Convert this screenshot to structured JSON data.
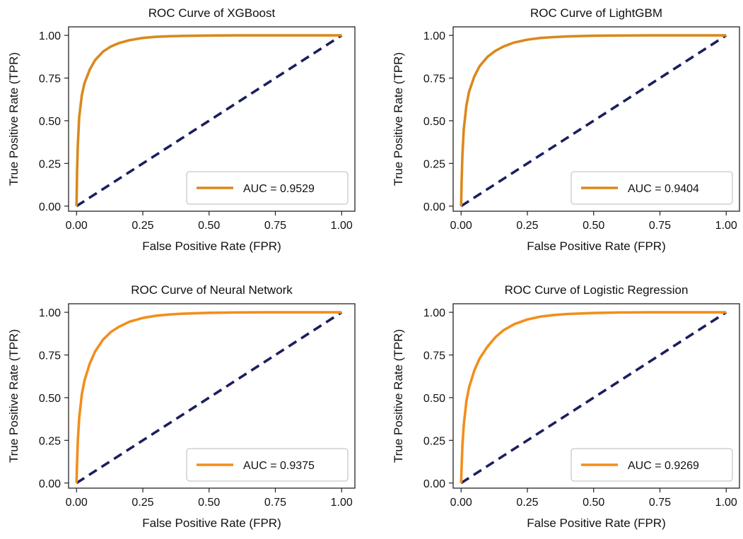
{
  "colors": {
    "roc_curve": "#F28E1B",
    "roc_curve_dark": "#D4891F",
    "diagonal": "#1B1F5E",
    "frame": "#222222"
  },
  "chart_data": [
    {
      "type": "line",
      "title": "ROC Curve of XGBoost",
      "xlabel": "False Positive Rate (FPR)",
      "ylabel": "True Positive Rate (TPR)",
      "xlim": [
        -0.03,
        1.05
      ],
      "ylim": [
        -0.03,
        1.05
      ],
      "xticks": [
        0.0,
        0.25,
        0.5,
        0.75,
        1.0
      ],
      "xtick_labels": [
        "0.00",
        "0.25",
        "0.50",
        "0.75",
        "1.00"
      ],
      "yticks": [
        0.0,
        0.25,
        0.5,
        0.75,
        1.0
      ],
      "ytick_labels": [
        "0.00",
        "0.25",
        "0.50",
        "0.75",
        "1.00"
      ],
      "grid": false,
      "legend_position": "lower-right",
      "series": [
        {
          "name": "AUC = 0.9529",
          "color": "#D9891C",
          "x": [
            0,
            0.002,
            0.005,
            0.01,
            0.02,
            0.03,
            0.05,
            0.07,
            0.1,
            0.13,
            0.16,
            0.2,
            0.25,
            0.3,
            0.35,
            0.4,
            0.5,
            0.6,
            0.7,
            0.8,
            0.9,
            1.0
          ],
          "y": [
            0,
            0.2,
            0.36,
            0.52,
            0.65,
            0.72,
            0.8,
            0.855,
            0.905,
            0.935,
            0.955,
            0.972,
            0.985,
            0.992,
            0.995,
            0.997,
            0.999,
            1.0,
            1.0,
            1.0,
            1.0,
            1.0
          ]
        },
        {
          "name": "",
          "style": "dashed",
          "color": "#1B1F5E",
          "x": [
            0,
            1
          ],
          "y": [
            0,
            1
          ]
        }
      ]
    },
    {
      "type": "line",
      "title": "ROC Curve of LightGBM",
      "xlabel": "False Positive Rate (FPR)",
      "ylabel": "True Positive Rate (TPR)",
      "xlim": [
        -0.03,
        1.05
      ],
      "ylim": [
        -0.03,
        1.05
      ],
      "xticks": [
        0.0,
        0.25,
        0.5,
        0.75,
        1.0
      ],
      "xtick_labels": [
        "0.00",
        "0.25",
        "0.50",
        "0.75",
        "1.00"
      ],
      "yticks": [
        0.0,
        0.25,
        0.5,
        0.75,
        1.0
      ],
      "ytick_labels": [
        "0.00",
        "0.25",
        "0.50",
        "0.75",
        "1.00"
      ],
      "grid": false,
      "legend_position": "lower-right",
      "series": [
        {
          "name": "AUC = 0.9404",
          "color": "#D9891C",
          "x": [
            0,
            0.002,
            0.005,
            0.01,
            0.02,
            0.03,
            0.05,
            0.07,
            0.1,
            0.13,
            0.16,
            0.2,
            0.25,
            0.3,
            0.35,
            0.4,
            0.5,
            0.6,
            0.7,
            0.8,
            0.9,
            1.0
          ],
          "y": [
            0,
            0.15,
            0.3,
            0.45,
            0.59,
            0.67,
            0.76,
            0.82,
            0.875,
            0.91,
            0.935,
            0.958,
            0.975,
            0.985,
            0.99,
            0.994,
            0.998,
            0.999,
            1.0,
            1.0,
            1.0,
            1.0
          ]
        },
        {
          "name": "",
          "style": "dashed",
          "color": "#1B1F5E",
          "x": [
            0,
            1
          ],
          "y": [
            0,
            1
          ]
        }
      ]
    },
    {
      "type": "line",
      "title": "ROC Curve of Neural Network",
      "xlabel": "False Positive Rate (FPR)",
      "ylabel": "True Positive Rate (TPR)",
      "xlim": [
        -0.03,
        1.05
      ],
      "ylim": [
        -0.03,
        1.05
      ],
      "xticks": [
        0.0,
        0.25,
        0.5,
        0.75,
        1.0
      ],
      "xtick_labels": [
        "0.00",
        "0.25",
        "0.50",
        "0.75",
        "1.00"
      ],
      "yticks": [
        0.0,
        0.25,
        0.5,
        0.75,
        1.0
      ],
      "ytick_labels": [
        "0.00",
        "0.25",
        "0.50",
        "0.75",
        "1.00"
      ],
      "grid": false,
      "legend_position": "lower-right",
      "series": [
        {
          "name": "AUC = 0.9375",
          "color": "#F28E1B",
          "x": [
            0,
            0.002,
            0.005,
            0.01,
            0.02,
            0.03,
            0.05,
            0.07,
            0.1,
            0.13,
            0.16,
            0.2,
            0.25,
            0.3,
            0.35,
            0.4,
            0.5,
            0.6,
            0.7,
            0.8,
            0.9,
            1.0
          ],
          "y": [
            0,
            0.12,
            0.25,
            0.38,
            0.52,
            0.6,
            0.7,
            0.77,
            0.84,
            0.885,
            0.915,
            0.945,
            0.967,
            0.98,
            0.987,
            0.992,
            0.997,
            0.999,
            1.0,
            1.0,
            1.0,
            1.0
          ]
        },
        {
          "name": "",
          "style": "dashed",
          "color": "#1B1F5E",
          "x": [
            0,
            1
          ],
          "y": [
            0,
            1
          ]
        }
      ]
    },
    {
      "type": "line",
      "title": "ROC Curve of Logistic Regression",
      "xlabel": "False Positive Rate (FPR)",
      "ylabel": "True Positive Rate (TPR)",
      "xlim": [
        -0.03,
        1.05
      ],
      "ylim": [
        -0.03,
        1.05
      ],
      "xticks": [
        0.0,
        0.25,
        0.5,
        0.75,
        1.0
      ],
      "xtick_labels": [
        "0.00",
        "0.25",
        "0.50",
        "0.75",
        "1.00"
      ],
      "yticks": [
        0.0,
        0.25,
        0.5,
        0.75,
        1.0
      ],
      "ytick_labels": [
        "0.00",
        "0.25",
        "0.50",
        "0.75",
        "1.00"
      ],
      "grid": false,
      "legend_position": "lower-right",
      "series": [
        {
          "name": "AUC = 0.9269",
          "color": "#F28E1B",
          "x": [
            0,
            0.002,
            0.005,
            0.01,
            0.02,
            0.03,
            0.05,
            0.07,
            0.1,
            0.13,
            0.16,
            0.2,
            0.25,
            0.3,
            0.35,
            0.4,
            0.5,
            0.6,
            0.7,
            0.8,
            0.9,
            1.0
          ],
          "y": [
            0,
            0.1,
            0.22,
            0.34,
            0.48,
            0.56,
            0.66,
            0.73,
            0.8,
            0.855,
            0.895,
            0.93,
            0.958,
            0.975,
            0.984,
            0.99,
            0.996,
            0.999,
            1.0,
            1.0,
            1.0,
            1.0
          ]
        },
        {
          "name": "",
          "style": "dashed",
          "color": "#1B1F5E",
          "x": [
            0,
            1
          ],
          "y": [
            0,
            1
          ]
        }
      ]
    }
  ]
}
